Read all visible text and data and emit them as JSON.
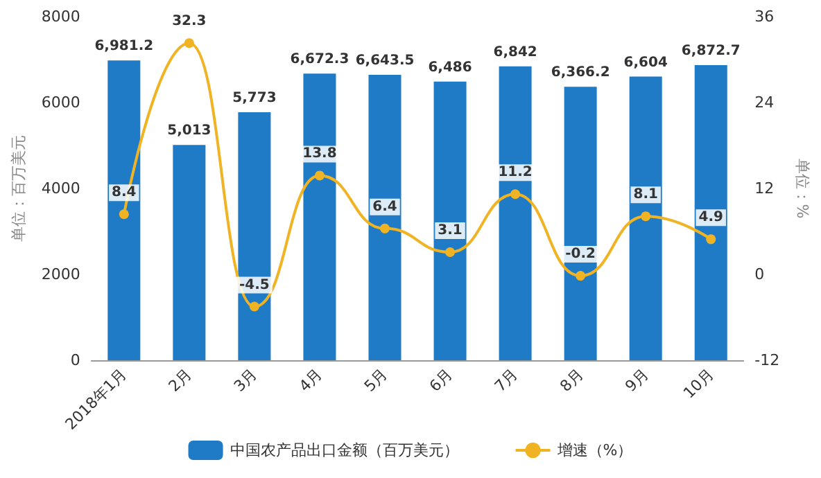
{
  "chart_data": {
    "type": "bar",
    "ylabel": "单位：百万美元",
    "y2label": "单位：%",
    "categories": [
      "2018年1月",
      "2月",
      "3月",
      "4月",
      "5月",
      "6月",
      "7月",
      "8月",
      "9月",
      "10月"
    ],
    "series": [
      {
        "name": "中国农产品出口金额（百万美元）",
        "color": "#1f7bc6",
        "values": [
          6981.2,
          5013,
          5773,
          6672.3,
          6643.5,
          6486,
          6842,
          6366.2,
          6604,
          6872.7
        ],
        "value_labels": [
          "6,981.2",
          "5,013",
          "5,773",
          "6,672.3",
          "6,643.5",
          "6,486",
          "6,842",
          "6,366.2",
          "6,604",
          "6,872.7"
        ]
      },
      {
        "name": "增速（%）",
        "type": "line",
        "axis": "y2",
        "color": "#f0b323",
        "marker": "circle",
        "values": [
          8.4,
          32.3,
          -4.5,
          13.8,
          6.4,
          3.1,
          11.2,
          -0.2,
          8.1,
          4.9
        ]
      }
    ],
    "ylim": [
      0,
      8000
    ],
    "yticks": [
      0,
      2000,
      4000,
      6000,
      8000
    ],
    "y2lim": [
      -12,
      36
    ],
    "y2ticks": [
      -12,
      0,
      12,
      24,
      36
    ],
    "data_labels": true,
    "legend": "bottom"
  }
}
